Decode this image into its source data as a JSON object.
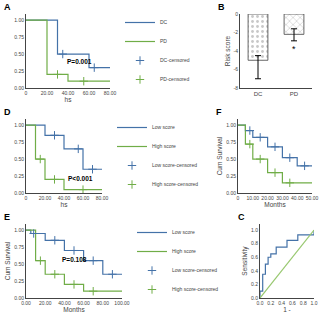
{
  "chart_data": [
    {
      "type": "line",
      "title": "A",
      "xlabel": "hs",
      "xlim": [
        0,
        80
      ],
      "xticks": [
        0,
        {
          "value": 20,
          "label": "20.00"
        },
        {
          "value": 40,
          "label": "40.00"
        },
        {
          "value": 60,
          "label": "60.00"
        },
        {
          "value": 80,
          "label": "80.00"
        }
      ],
      "ylim": [
        0,
        1.09
      ],
      "yticks": [
        {
          "value": 0,
          "label": "0.00"
        },
        0.25,
        {
          "value": 0.5,
          "label": "0.50"
        },
        0.75,
        {
          "value": 1.0,
          "label": "1.00"
        }
      ],
      "grid": false,
      "legend": "right",
      "annotations": [
        {
          "text": "P=0.001"
        }
      ],
      "series": [
        {
          "name": "DC",
          "type": "step",
          "color": "#4472a8",
          "x": [
            0,
            30,
            30,
            60,
            60,
            80
          ],
          "values": [
            1.0,
            1.0,
            0.5,
            0.5,
            0.3,
            0.3
          ]
        },
        {
          "name": "PD",
          "type": "step",
          "color": "#70ad47",
          "x": [
            0,
            20,
            20,
            40,
            40,
            80
          ],
          "values": [
            1.0,
            1.0,
            0.2,
            0.2,
            0.1,
            0.1
          ]
        },
        {
          "name": "DC-censored",
          "type": "scatter",
          "marker": "+",
          "color": "#4472a8",
          "x": [
            35,
            65
          ],
          "values": [
            0.5,
            0.3
          ]
        },
        {
          "name": "PD-censored",
          "type": "scatter",
          "marker": "+",
          "color": "#70ad47",
          "x": [
            30,
            55
          ],
          "values": [
            0.2,
            0.1
          ]
        }
      ]
    },
    {
      "type": "bar",
      "title": "B",
      "ylabel": "Risk score",
      "categories": [
        "DC",
        "PD"
      ],
      "values": [
        -5.0,
        -2.2
      ],
      "error_upper": [
        0.5,
        0.6
      ],
      "error_lower": [
        2.0,
        0.7
      ],
      "colors": [
        "#c8c8c8",
        "#d0d0d0"
      ],
      "ylim": [
        -8,
        0
      ],
      "yticks": [
        0,
        -2,
        -4,
        -6,
        -8
      ],
      "grid": false,
      "annotations": [
        {
          "text": "*",
          "category": "PD"
        }
      ]
    },
    {
      "type": "line",
      "title": "C",
      "xlabel": "1 -",
      "ylabel": "Sensitivity",
      "xlim": [
        0,
        1.0
      ],
      "xticks": [
        {
          "value": 0,
          "label": "0.0"
        },
        0.2,
        0.4,
        0.6,
        0.8,
        {
          "value": 1.0,
          "label": "1.0"
        }
      ],
      "ylim": [
        0,
        1.09
      ],
      "yticks": [
        {
          "value": 0,
          "label": "0.0"
        },
        0.2,
        0.4,
        0.6,
        0.8,
        {
          "value": 1.0,
          "label": "1.0"
        }
      ],
      "grid": false,
      "series": [
        {
          "type": "step",
          "color": "#4472a8",
          "x": [
            0.0,
            0.0,
            0.05,
            0.1,
            0.15,
            0.2,
            0.3,
            0.5,
            0.7,
            1.0
          ],
          "values": [
            0.0,
            0.1,
            0.35,
            0.5,
            0.6,
            0.65,
            0.75,
            0.85,
            0.93,
            1.0
          ]
        },
        {
          "type": "line",
          "color": "#98c870",
          "x": [
            0.0,
            1.0
          ],
          "values": [
            0.0,
            1.0
          ]
        }
      ]
    },
    {
      "type": "line",
      "title": "D",
      "xlabel": "hs",
      "xlim": [
        0,
        80
      ],
      "xticks": [
        0,
        {
          "value": 20,
          "label": "20.00"
        },
        {
          "value": 40,
          "label": "40.00"
        },
        {
          "value": 60,
          "label": "60.00"
        },
        {
          "value": 80,
          "label": "80.00"
        }
      ],
      "ylim": [
        0,
        1.09
      ],
      "yticks": [
        {
          "value": 0,
          "label": "0.00"
        },
        0.25,
        {
          "value": 0.5,
          "label": "0.50"
        },
        0.75,
        {
          "value": 1.0,
          "label": "1.00"
        }
      ],
      "grid": false,
      "legend": "right",
      "annotations": [
        {
          "text": "P<0.001"
        }
      ],
      "series": [
        {
          "name": "Low score",
          "type": "step",
          "color": "#4472a8",
          "x": [
            0,
            20,
            20,
            40,
            40,
            60,
            60,
            80
          ],
          "values": [
            1.0,
            1.0,
            0.85,
            0.85,
            0.65,
            0.65,
            0.35,
            0.35
          ]
        },
        {
          "name": "High score",
          "type": "step",
          "color": "#70ad47",
          "x": [
            0,
            10,
            10,
            20,
            20,
            40,
            40,
            80
          ],
          "values": [
            1.0,
            1.0,
            0.5,
            0.5,
            0.2,
            0.2,
            0.05,
            0.05
          ]
        },
        {
          "name": "Low score-censored",
          "type": "scatter",
          "marker": "+",
          "color": "#4472a8",
          "x": [
            30,
            55,
            70
          ],
          "values": [
            0.85,
            0.65,
            0.35
          ]
        },
        {
          "name": "High score-censored",
          "type": "scatter",
          "marker": "+",
          "color": "#70ad47",
          "x": [
            15,
            30,
            60
          ],
          "values": [
            0.5,
            0.2,
            0.05
          ]
        }
      ]
    },
    {
      "type": "line",
      "title": "E",
      "xlabel": "Months",
      "ylabel": "Cum Survival",
      "xlim": [
        0,
        100
      ],
      "xticks": [
        {
          "value": 0,
          "label": "0.00"
        },
        {
          "value": 20,
          "label": "20.00"
        },
        {
          "value": 40,
          "label": "40.00"
        },
        {
          "value": 60,
          "label": "60.00"
        },
        {
          "value": 80,
          "label": "80.00"
        },
        {
          "value": 100,
          "label": "100.00"
        }
      ],
      "ylim": [
        0,
        1.09
      ],
      "yticks": [
        {
          "value": 0,
          "label": "0.00"
        },
        0.25,
        {
          "value": 0.5,
          "label": "0.50"
        },
        0.75,
        {
          "value": 1.0,
          "label": "1.00"
        }
      ],
      "grid": false,
      "legend": "right",
      "annotations": [
        {
          "text": "P=0.108"
        }
      ],
      "series": [
        {
          "name": "Low score",
          "type": "step",
          "color": "#4472a8",
          "x": [
            0,
            5,
            5,
            20,
            20,
            40,
            40,
            60,
            60,
            80,
            80,
            100
          ],
          "values": [
            1.0,
            1.0,
            0.95,
            0.95,
            0.85,
            0.85,
            0.7,
            0.7,
            0.55,
            0.55,
            0.35,
            0.35
          ]
        },
        {
          "name": "High score",
          "type": "step",
          "color": "#70ad47",
          "x": [
            0,
            10,
            10,
            20,
            20,
            40,
            40,
            60,
            60,
            100
          ],
          "values": [
            1.0,
            1.0,
            0.55,
            0.55,
            0.35,
            0.35,
            0.2,
            0.2,
            0.1,
            0.1
          ]
        },
        {
          "name": "Low score-censored",
          "type": "scatter",
          "marker": "+",
          "color": "#4472a8",
          "x": [
            8,
            30,
            50,
            70,
            90
          ],
          "values": [
            0.95,
            0.85,
            0.7,
            0.55,
            0.35
          ]
        },
        {
          "name": "High score-censored",
          "type": "scatter",
          "marker": "+",
          "color": "#70ad47",
          "x": [
            15,
            30,
            50,
            70
          ],
          "values": [
            0.55,
            0.35,
            0.2,
            0.1
          ]
        }
      ]
    },
    {
      "type": "line",
      "title": "F",
      "xlabel": "Months",
      "ylabel": "Cum Survival",
      "xlim": [
        0,
        50
      ],
      "xticks": [
        0,
        {
          "value": 10,
          "label": "10.00"
        },
        {
          "value": 20,
          "label": "20.00"
        },
        {
          "value": 30,
          "label": "30.00"
        },
        {
          "value": 40,
          "label": "40.00"
        },
        {
          "value": 50,
          "label": "50.00"
        }
      ],
      "ylim": [
        0,
        1.09
      ],
      "yticks": [
        {
          "value": 0,
          "label": "0.00"
        },
        0.25,
        {
          "value": 0.5,
          "label": "0.50"
        },
        0.75,
        {
          "value": 1.0,
          "label": "1.00"
        }
      ],
      "grid": false,
      "series": [
        {
          "type": "step",
          "color": "#4472a8",
          "x": [
            0,
            5,
            5,
            10,
            10,
            20,
            20,
            30,
            30,
            40,
            40,
            50
          ],
          "values": [
            1.0,
            1.0,
            0.92,
            0.92,
            0.82,
            0.82,
            0.68,
            0.68,
            0.52,
            0.52,
            0.4,
            0.4
          ]
        },
        {
          "type": "step",
          "color": "#70ad47",
          "x": [
            0,
            5,
            5,
            10,
            10,
            20,
            20,
            30,
            30,
            50
          ],
          "values": [
            1.0,
            1.0,
            0.72,
            0.72,
            0.5,
            0.5,
            0.3,
            0.3,
            0.15,
            0.15
          ]
        },
        {
          "type": "scatter",
          "marker": "+",
          "color": "#4472a8",
          "x": [
            8,
            15,
            25,
            35,
            45
          ],
          "values": [
            0.92,
            0.82,
            0.68,
            0.52,
            0.4
          ]
        },
        {
          "type": "scatter",
          "marker": "+",
          "color": "#70ad47",
          "x": [
            8,
            15,
            25,
            35
          ],
          "values": [
            0.72,
            0.5,
            0.3,
            0.15
          ]
        }
      ]
    }
  ]
}
